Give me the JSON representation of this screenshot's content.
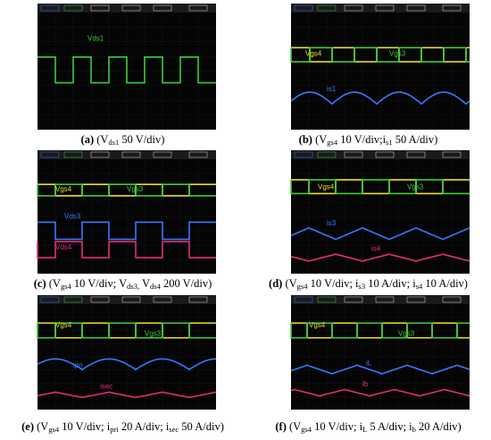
{
  "panels": [
    {
      "labels": [
        "Vds1"
      ],
      "caption": {
        "label": "(a)",
        "parts": [
          " (V",
          "ds1",
          " 50 V/div)"
        ]
      }
    },
    {
      "labels": [
        "Vgs4",
        "Vgs3",
        "is1"
      ],
      "caption": {
        "label": "(b)",
        "parts": [
          " (V",
          "gs4",
          " 10 V/div;i",
          "s1",
          " 50 A/div)"
        ]
      }
    },
    {
      "labels": [
        "Vgs4",
        "Vgs3",
        "Vds3",
        "Vds4"
      ],
      "caption": {
        "label": "(c)",
        "parts": [
          " (V",
          "gs4",
          " 10 V/div; V",
          "ds3,",
          " V",
          "ds4",
          " 200 V/div)"
        ]
      }
    },
    {
      "labels": [
        "Vgs4",
        "Vgs3",
        "is3",
        "is4"
      ],
      "caption": {
        "label": "(d)",
        "parts": [
          " (V",
          "gs4",
          " 10 V/div; i",
          "s3",
          " 10 A/div; i",
          "s4",
          " 10 A/div)"
        ]
      }
    },
    {
      "labels": [
        "Vgs4",
        "Vgs3",
        "ipri",
        "isec"
      ],
      "caption": {
        "label": "(e)",
        "parts": [
          " (V",
          "gs4",
          " 10 V/div; i",
          "pri",
          " 20 A/div; i",
          "sec",
          " 50 A/div)"
        ]
      }
    },
    {
      "labels": [
        "Vgs4",
        "Vgs3",
        "iL",
        "ib"
      ],
      "caption": {
        "label": "(f)",
        "parts": [
          " (V",
          "gs4",
          " 10 V/div; i",
          "L",
          " 5 A/div; i",
          "b",
          " 20 A/div)"
        ]
      }
    }
  ]
}
